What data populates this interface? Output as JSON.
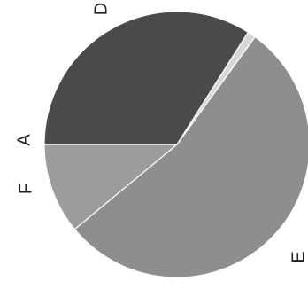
{
  "chart_data": {
    "type": "pie",
    "categories": [
      "A",
      "D",
      "E",
      "F"
    ],
    "values": [
      34,
      1,
      54,
      11
    ],
    "colors": [
      "#4a4a4a",
      "#d6d6d6",
      "#8e8e8e",
      "#9c9c9c"
    ]
  }
}
